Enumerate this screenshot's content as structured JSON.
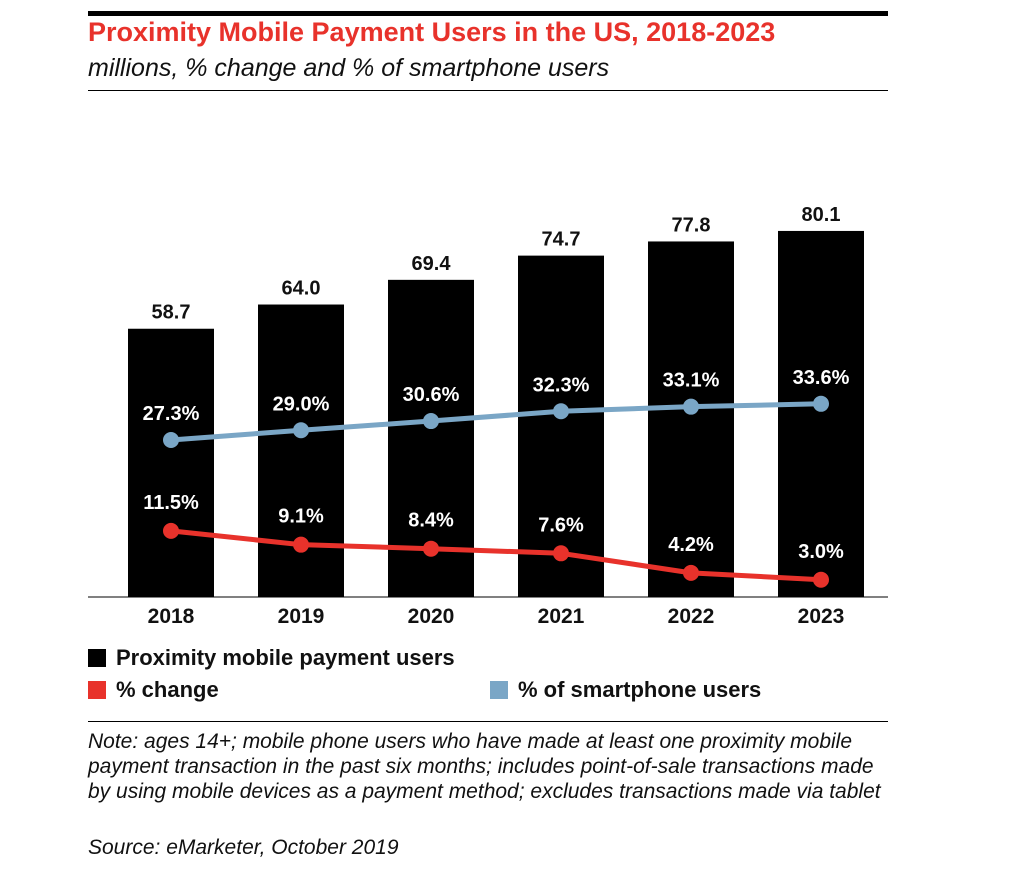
{
  "title": "Proximity Mobile Payment Users in the US, 2018-2023",
  "subtitle": "millions, % change and % of smartphone users",
  "colors": {
    "title": "#e8322b",
    "bars": "#000000",
    "change_line": "#e8322b",
    "smartphone_line": "#7aa6c6"
  },
  "chart_data": {
    "type": "bar",
    "categories": [
      "2018",
      "2019",
      "2020",
      "2021",
      "2022",
      "2023"
    ],
    "series": [
      {
        "name": "Proximity mobile payment users",
        "type": "bar",
        "values": [
          58.7,
          64.0,
          69.4,
          74.7,
          77.8,
          80.1
        ],
        "labels": [
          "58.7",
          "64.0",
          "69.4",
          "74.7",
          "77.8",
          "80.1"
        ]
      },
      {
        "name": "% change",
        "type": "line",
        "values": [
          11.5,
          9.1,
          8.4,
          7.6,
          4.2,
          3.0
        ],
        "labels": [
          "11.5%",
          "9.1%",
          "8.4%",
          "7.6%",
          "4.2%",
          "3.0%"
        ]
      },
      {
        "name": "% of smartphone users",
        "type": "line",
        "values": [
          27.3,
          29.0,
          30.6,
          32.3,
          33.1,
          33.6
        ],
        "labels": [
          "27.3%",
          "29.0%",
          "30.6%",
          "32.3%",
          "33.1%",
          "33.6%"
        ]
      }
    ],
    "legend": [
      "Proximity mobile payment users",
      "% change",
      "% of smartphone users"
    ],
    "legend_position": "bottom"
  },
  "legend": {
    "bars": "Proximity mobile payment users",
    "change": "% change",
    "smartphone": "% of smartphone users"
  },
  "note": "Note: ages 14+; mobile phone users who have made at least one proximity mobile payment transaction in the past six months; includes point-of-sale transactions made by using mobile devices as a payment method; excludes transactions made via tablet",
  "source": "Source: eMarketer, October 2019"
}
